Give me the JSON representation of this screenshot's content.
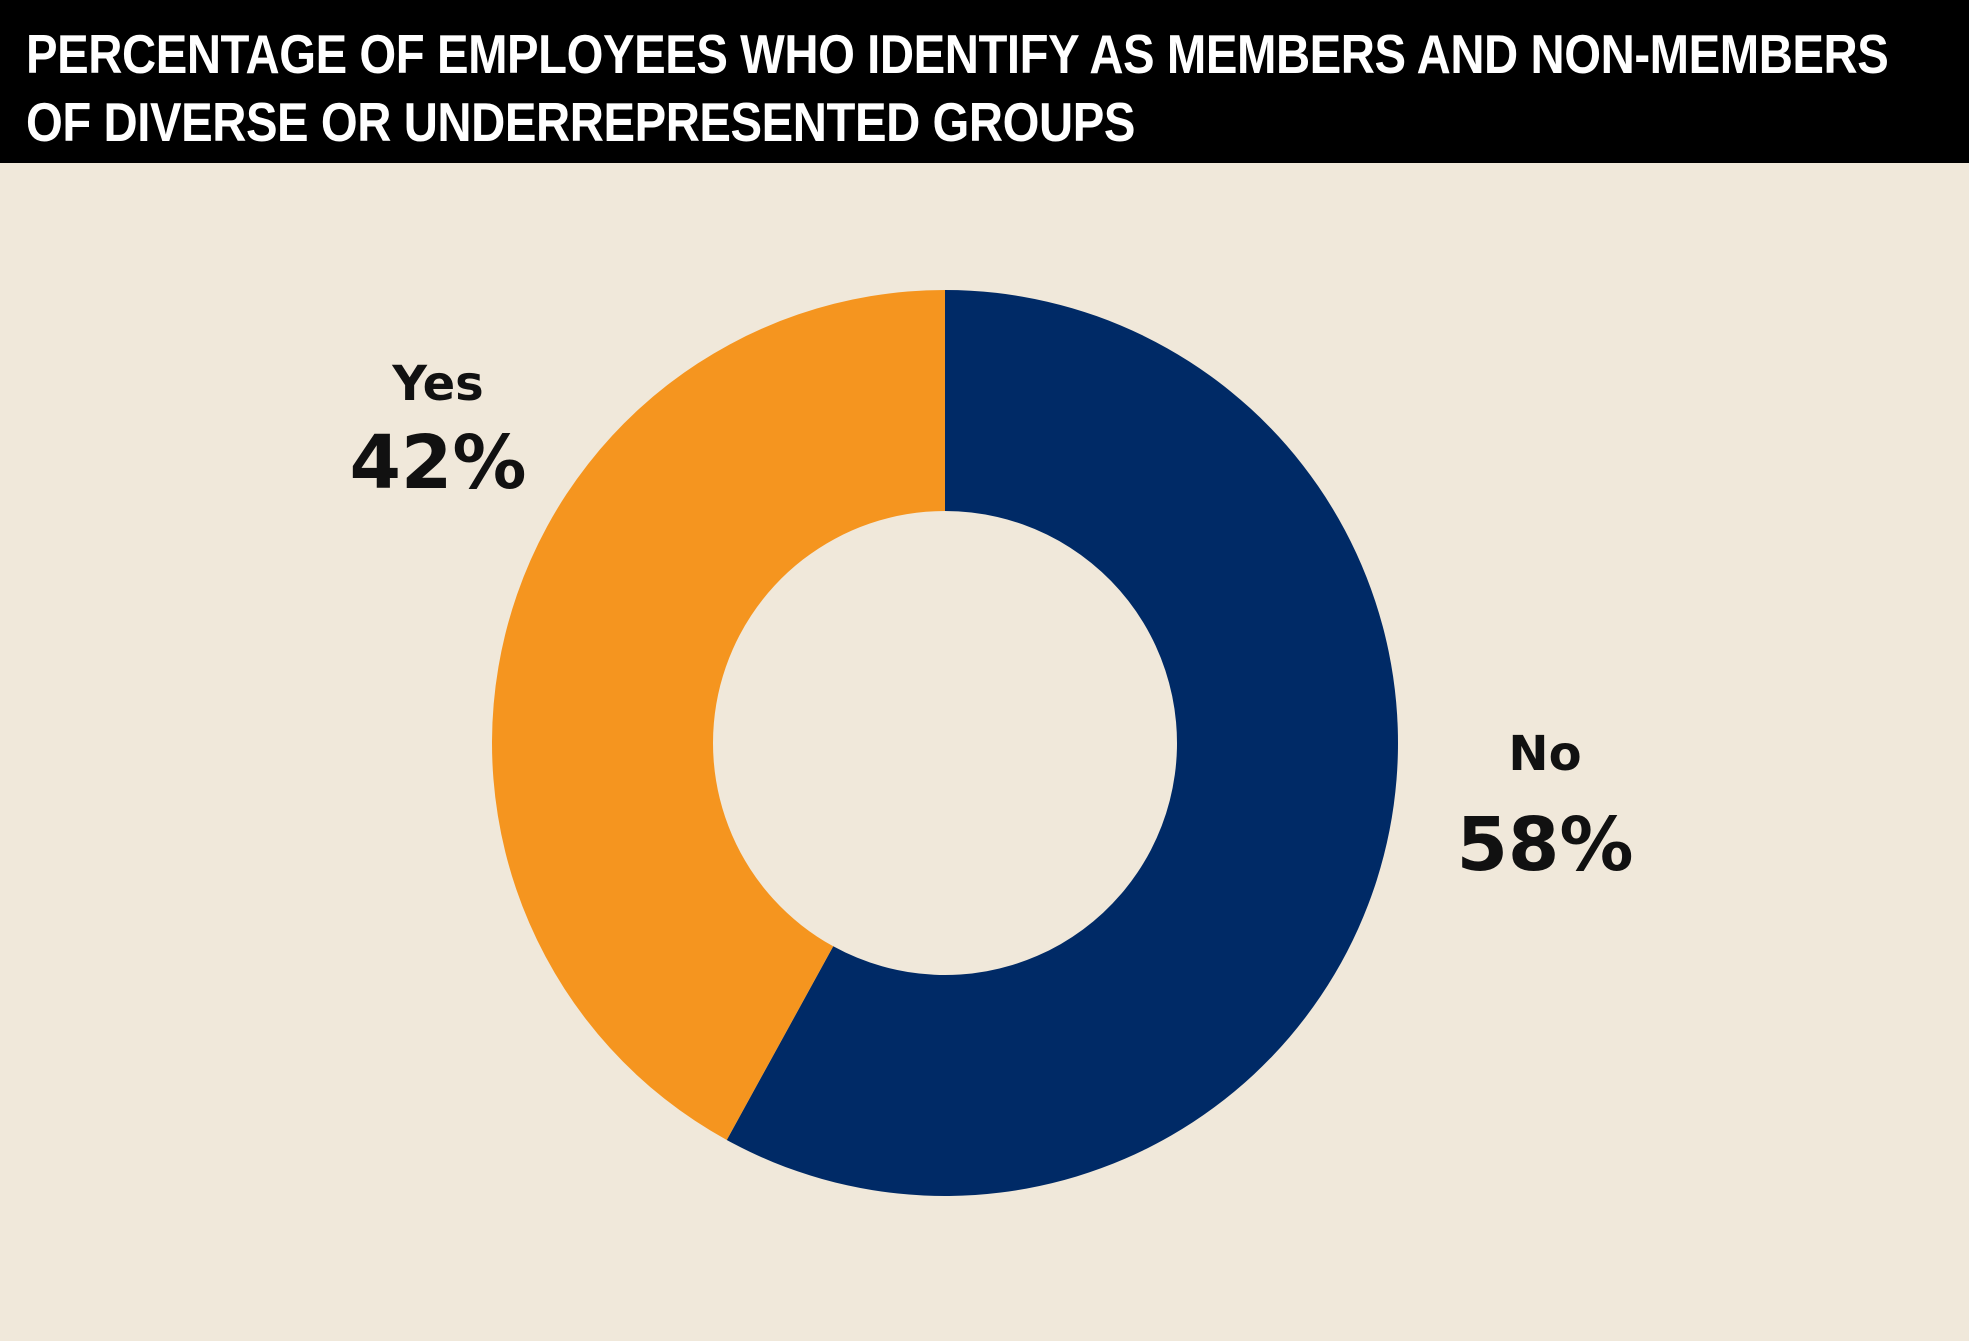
{
  "chart_data": {
    "type": "pie",
    "style": "donut",
    "title": "PERCENTAGE OF EMPLOYEES WHO IDENTIFY AS MEMBERS AND NON-MEMBERS OF DIVERSE OR UNDERREPRESENTED GROUPS",
    "slices": [
      {
        "label": "No",
        "value": 58,
        "display": "58%",
        "color": "#002a66"
      },
      {
        "label": "Yes",
        "value": 42,
        "display": "42%",
        "color": "#f5951f"
      }
    ],
    "start": "12 o'clock",
    "direction": "clockwise",
    "legend": "none",
    "labels": "outside"
  },
  "colors": {
    "background": "#f0e8da",
    "title_bar": "#000000",
    "title_text": "#ffffff",
    "label_text": "#111111"
  }
}
